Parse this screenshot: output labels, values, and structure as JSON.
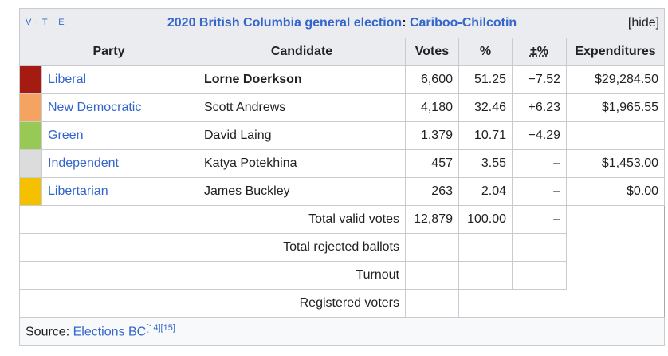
{
  "header": {
    "vte": [
      "V",
      "T",
      "E"
    ],
    "title": [
      "2020 British Columbia general election",
      ":",
      "Cariboo-Chilcotin"
    ],
    "toggle": "[hide]"
  },
  "table": {
    "columns": [
      "Party",
      "Candidate",
      "Votes",
      "%",
      "±%",
      "Expenditures"
    ],
    "rows": [
      {
        "party": "Liberal",
        "color": "#a51b12",
        "candidate": "Lorne Doerkson",
        "winner": true,
        "votes": "6,600",
        "percent": "51.25",
        "change": "−7.52",
        "expenditures": "$29,284.50"
      },
      {
        "party": "New Democratic",
        "color": "#f4a460",
        "candidate": "Scott Andrews",
        "votes": "4,180",
        "percent": "32.46",
        "change": "+6.23",
        "expenditures": "$1,965.55"
      },
      {
        "party": "Green",
        "color": "#99c955",
        "candidate": "David Laing",
        "votes": "1,379",
        "percent": "10.71",
        "change": "−4.29"
      },
      {
        "party": "Independent",
        "color": "#dcdcdc",
        "candidate": "Katya Potekhina",
        "votes": "457",
        "percent": "3.55",
        "change": "–",
        "expenditures": "$1,453.00"
      },
      {
        "party": "Libertarian",
        "color": "#f5c000",
        "candidate": "James Buckley",
        "votes": "263",
        "percent": "2.04",
        "change": "–",
        "expenditures": "$0.00"
      }
    ],
    "totals": [
      {
        "label": "Total valid votes",
        "votes": "12,879",
        "percent": "100.00",
        "change": "–"
      },
      {
        "label": "Total rejected ballots"
      },
      {
        "label": "Turnout"
      },
      {
        "label": "Registered voters"
      }
    ]
  },
  "source": {
    "label": "Source:",
    "link": "Elections BC",
    "refs": [
      "[14]",
      "[15]"
    ]
  }
}
